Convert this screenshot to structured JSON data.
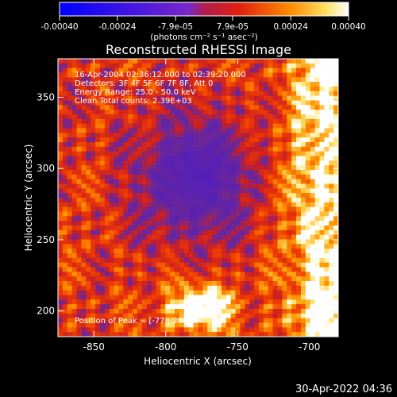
{
  "chart_data": {
    "type": "heatmap",
    "title": "Reconstructed RHESSI Image",
    "xlabel": "Heliocentric X (arcsec)",
    "ylabel": "Heliocentric Y (arcsec)",
    "xlim": [
      -875,
      -680
    ],
    "ylim": [
      182,
      377
    ],
    "xticks": [
      -850,
      -800,
      -750,
      -700
    ],
    "yticks": [
      200,
      250,
      300,
      350
    ],
    "colorbar": {
      "range": [
        -0.0004,
        0.0004
      ],
      "ticks": [
        -0.0004,
        -0.00024,
        -7.9e-05,
        7.9e-05,
        0.00024,
        0.0004
      ],
      "tick_labels": [
        "-0.00040",
        "-0.00024",
        "-7.9e-05",
        "7.9e-05",
        "0.00024",
        "0.00040"
      ],
      "units_label": "(photons cm⁻² s⁻¹ asec⁻²)",
      "colors": [
        "#0000ff",
        "#7a28c8",
        "#d81e32",
        "#ff8c00",
        "#ffffff"
      ]
    },
    "annotations": [
      "16-Apr-2004 02:36:12.000 to 02:39:20.000",
      "Detectors: 3F 4F 5F 6F 7F 8F, Att 0",
      "Energy Range: 25.0 - 50.0 keV",
      "Clean     Total counts: 2.39E+03"
    ],
    "peak_label": "Position of Peak = [-778,204]",
    "peak": [
      -778,
      204
    ]
  },
  "footer": {
    "timestamp": "30-Apr-2022 04:36"
  }
}
